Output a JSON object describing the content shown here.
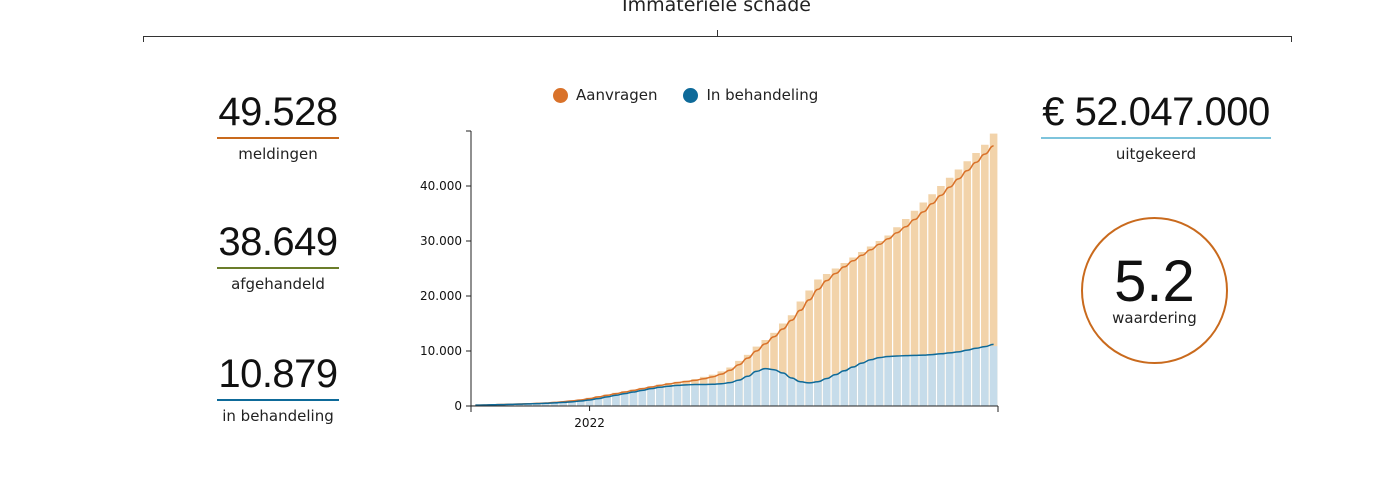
{
  "section": {
    "title": "Immateriële schade"
  },
  "kpis": {
    "meldingen": {
      "value": "49.528",
      "label": "meldingen",
      "color": "#c96a1d"
    },
    "afgehandeld": {
      "value": "38.649",
      "label": "afgehandeld",
      "color": "#6b7d2a"
    },
    "behandeling": {
      "value": "10.879",
      "label": "in behandeling",
      "color": "#0e6a99"
    },
    "uitgekeerd": {
      "value": "€ 52.047.000",
      "label": "uitgekeerd",
      "color": "#7ec4dc"
    }
  },
  "rating": {
    "value": "5.2",
    "label": "waardering",
    "color": "#c96a1d"
  },
  "legend": [
    {
      "label": "Aanvragen",
      "color": "#d9722a"
    },
    {
      "label": "In behandeling",
      "color": "#0e6a99"
    }
  ],
  "chart_data": {
    "type": "bar",
    "title": "",
    "xlabel": "",
    "ylabel": "",
    "ylim": [
      0,
      50000
    ],
    "yticks": [
      0,
      10000,
      20000,
      30000,
      40000
    ],
    "ytick_labels": [
      "0",
      "10.000",
      "20.000",
      "30.000",
      "40.000"
    ],
    "xtick_labels": [
      {
        "label": "2022",
        "index": 13
      }
    ],
    "bar_color": "#f2d3aa",
    "inner_bar_color": "#c6dcea",
    "series": [
      {
        "name": "Aanvragen",
        "values": [
          150,
          200,
          250,
          300,
          350,
          400,
          450,
          500,
          600,
          700,
          800,
          1000,
          1200,
          1500,
          1800,
          2100,
          2400,
          2700,
          3000,
          3300,
          3600,
          3900,
          4200,
          4400,
          4600,
          4900,
          5300,
          5700,
          6300,
          7000,
          8200,
          9300,
          10800,
          12000,
          13300,
          15000,
          16500,
          19000,
          21000,
          23000,
          24000,
          25000,
          26000,
          27000,
          28000,
          29000,
          30000,
          31000,
          32500,
          34000,
          35500,
          37000,
          38500,
          40000,
          41500,
          43000,
          44500,
          46000,
          47500,
          49528
        ],
        "line": [
          150,
          190,
          230,
          270,
          310,
          360,
          410,
          470,
          550,
          650,
          780,
          930,
          1100,
          1350,
          1650,
          1950,
          2250,
          2550,
          2850,
          3150,
          3450,
          3750,
          4000,
          4250,
          4450,
          4650,
          4950,
          5300,
          5800,
          6500,
          7500,
          8700,
          10000,
          11300,
          12600,
          14000,
          15600,
          17400,
          19300,
          21200,
          22800,
          24100,
          25300,
          26400,
          27400,
          28400,
          29400,
          30400,
          31500,
          32600,
          33900,
          35300,
          36800,
          38300,
          39800,
          41300,
          42800,
          44300,
          45800,
          47300
        ],
        "line_color": "#d9722a"
      },
      {
        "name": "In behandeling",
        "values": [
          150,
          180,
          220,
          260,
          300,
          340,
          380,
          430,
          490,
          560,
          650,
          760,
          900,
          1100,
          1350,
          1650,
          1950,
          2250,
          2550,
          2850,
          3150,
          3400,
          3600,
          3750,
          3850,
          3900,
          3900,
          3950,
          4050,
          4250,
          4700,
          5400,
          6300,
          6800,
          6600,
          6000,
          5100,
          4400,
          4200,
          4400,
          5000,
          5700,
          6400,
          7100,
          7800,
          8400,
          8800,
          9000,
          9100,
          9150,
          9200,
          9250,
          9350,
          9500,
          9650,
          9850,
          10150,
          10500,
          10800,
          10879
        ],
        "line": [
          150,
          180,
          220,
          260,
          300,
          340,
          380,
          430,
          490,
          560,
          650,
          760,
          900,
          1100,
          1350,
          1650,
          1950,
          2250,
          2550,
          2850,
          3150,
          3400,
          3600,
          3750,
          3850,
          3900,
          3900,
          3950,
          4050,
          4250,
          4700,
          5400,
          6300,
          6800,
          6600,
          6000,
          5100,
          4400,
          4200,
          4400,
          5000,
          5700,
          6400,
          7100,
          7800,
          8400,
          8800,
          9000,
          9100,
          9150,
          9200,
          9250,
          9350,
          9500,
          9650,
          9850,
          10150,
          10500,
          10800,
          11200
        ],
        "line_color": "#0e6a99"
      }
    ]
  }
}
